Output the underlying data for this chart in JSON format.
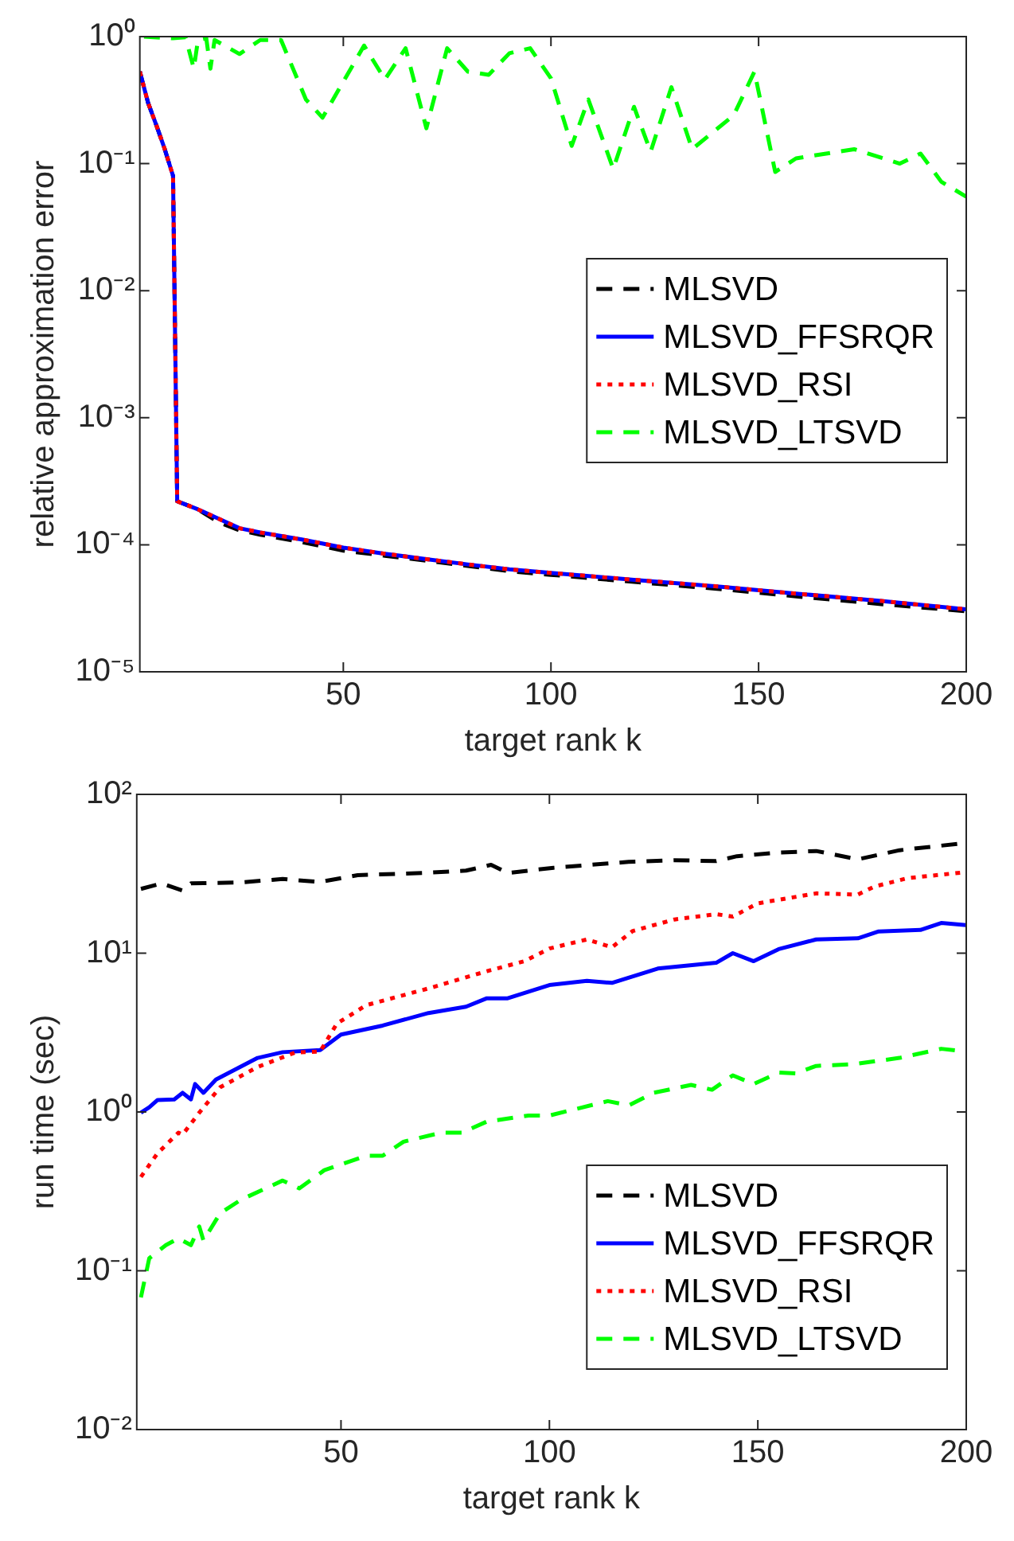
{
  "chart_data": [
    {
      "type": "line",
      "xlabel": "target rank k",
      "ylabel": "relative approximation error",
      "log": "y",
      "xlim": [
        1,
        200
      ],
      "xticks": [
        50,
        100,
        150,
        200
      ],
      "ylim": [
        1e-05,
        1
      ],
      "yticks": [
        {
          "value": 1e-05,
          "label": "10⁻⁵"
        },
        {
          "value": 0.0001,
          "label": "10⁻⁴"
        },
        {
          "value": 0.001,
          "label": "10⁻³"
        },
        {
          "value": 0.01,
          "label": "10⁻²"
        },
        {
          "value": 0.1,
          "label": "10⁻¹"
        },
        {
          "value": 1,
          "label": "10⁰"
        }
      ],
      "grid": false,
      "legend": "right",
      "series": [
        {
          "name": "MLSVD",
          "color": "#000000",
          "line_style": "dashed",
          "x": [
            1,
            3,
            5,
            7,
            9,
            10,
            15,
            20,
            25,
            30,
            40,
            50,
            60,
            70,
            80,
            90,
            100,
            120,
            140,
            160,
            180,
            200
          ],
          "values": [
            0.53,
            0.3,
            0.2,
            0.13,
            0.08,
            0.00022,
            0.00019,
            0.00015,
            0.00013,
            0.00012,
            0.000105,
            9e-05,
            8.2e-05,
            7.5e-05,
            6.8e-05,
            6.2e-05,
            5.8e-05,
            5.1e-05,
            4.5e-05,
            3.9e-05,
            3.4e-05,
            3e-05
          ]
        },
        {
          "name": "MLSVD_FFSRQR",
          "color": "#0000ff",
          "line_style": "solid",
          "x": [
            1,
            3,
            5,
            7,
            9,
            10,
            15,
            20,
            25,
            30,
            40,
            50,
            60,
            70,
            80,
            90,
            100,
            120,
            140,
            160,
            180,
            200
          ],
          "values": [
            0.53,
            0.3,
            0.2,
            0.13,
            0.08,
            0.00022,
            0.00019,
            0.00016,
            0.000135,
            0.000125,
            0.00011,
            9.5e-05,
            8.5e-05,
            7.7e-05,
            7e-05,
            6.4e-05,
            6e-05,
            5.3e-05,
            4.7e-05,
            4.1e-05,
            3.6e-05,
            3.1e-05
          ]
        },
        {
          "name": "MLSVD_RSI",
          "color": "#ff0000",
          "line_style": "dotted",
          "x": [
            1,
            3,
            5,
            7,
            9,
            10,
            15,
            20,
            25,
            30,
            40,
            50,
            60,
            70,
            80,
            90,
            100,
            120,
            140,
            160,
            180,
            200
          ],
          "values": [
            0.53,
            0.3,
            0.2,
            0.13,
            0.08,
            0.00022,
            0.00019,
            0.00016,
            0.000135,
            0.000125,
            0.00011,
            9.5e-05,
            8.5e-05,
            7.7e-05,
            7e-05,
            6.4e-05,
            6e-05,
            5.3e-05,
            4.7e-05,
            4.1e-05,
            3.6e-05,
            3.1e-05
          ]
        },
        {
          "name": "MLSVD_LTSVD",
          "color": "#00ff00",
          "line_style": "dashed",
          "x": [
            2,
            9,
            12,
            14,
            15,
            17,
            18,
            19,
            25,
            30,
            35,
            41,
            45,
            55,
            60,
            65,
            70,
            75,
            80,
            85,
            90,
            95,
            100,
            105,
            109,
            115,
            120,
            124,
            129,
            134,
            144,
            149,
            154,
            159,
            173,
            184,
            189,
            194,
            200
          ],
          "values": [
            1.0,
            0.97,
            0.99,
            0.56,
            0.94,
            0.97,
            0.56,
            0.94,
            0.73,
            0.94,
            0.94,
            0.32,
            0.23,
            0.85,
            0.46,
            0.81,
            0.19,
            0.81,
            0.53,
            0.5,
            0.74,
            0.81,
            0.47,
            0.138,
            0.32,
            0.091,
            0.28,
            0.124,
            0.4,
            0.13,
            0.24,
            0.53,
            0.086,
            0.11,
            0.13,
            0.1,
            0.12,
            0.072,
            0.055
          ]
        }
      ]
    },
    {
      "type": "line",
      "xlabel": "target rank k",
      "ylabel": "run time (sec)",
      "log": "y",
      "xlim": [
        1,
        200
      ],
      "xticks": [
        50,
        100,
        150,
        200
      ],
      "ylim": [
        0.01,
        100
      ],
      "yticks": [
        {
          "value": 0.01,
          "label": "10⁻²"
        },
        {
          "value": 0.1,
          "label": "10⁻¹"
        },
        {
          "value": 1,
          "label": "10⁰"
        },
        {
          "value": 10,
          "label": "10¹"
        },
        {
          "value": 100,
          "label": "10²"
        }
      ],
      "grid": false,
      "legend": "bottom right",
      "series": [
        {
          "name": "MLSVD",
          "color": "#000000",
          "line_style": "dashed",
          "x": [
            2,
            7,
            12,
            14,
            26,
            36,
            45,
            54,
            70,
            80,
            86,
            90,
            101,
            119,
            130,
            140,
            145,
            155,
            164,
            174,
            184,
            200
          ],
          "values": [
            25.4,
            27.5,
            24.8,
            27.5,
            27.9,
            29.3,
            28.1,
            31,
            32,
            33.1,
            36,
            32,
            34.5,
            37.6,
            38.5,
            38,
            40.8,
            43,
            44,
            39,
            44.5,
            49.5
          ]
        },
        {
          "name": "MLSVD_FFSRQR",
          "color": "#0000ff",
          "line_style": "solid",
          "x": [
            2,
            4,
            6,
            10,
            12,
            14,
            15,
            17,
            20,
            30,
            36,
            45,
            50,
            60,
            71,
            80,
            85,
            90,
            100,
            109,
            115,
            126,
            140,
            144,
            149,
            155,
            164,
            174,
            179,
            189,
            194,
            200
          ],
          "values": [
            0.99,
            1.07,
            1.19,
            1.2,
            1.32,
            1.2,
            1.5,
            1.32,
            1.6,
            2.19,
            2.38,
            2.45,
            3.07,
            3.5,
            4.2,
            4.6,
            5.2,
            5.2,
            6.3,
            6.7,
            6.5,
            8.0,
            8.7,
            10,
            8.9,
            10.6,
            12.2,
            12.4,
            13.7,
            14,
            15.5,
            15
          ]
        },
        {
          "name": "MLSVD_RSI",
          "color": "#ff0000",
          "line_style": "dotted",
          "x": [
            2,
            6,
            11,
            12,
            16,
            21,
            30,
            39,
            45,
            49,
            56,
            71,
            85,
            94,
            100,
            109,
            115,
            120,
            130,
            140,
            144,
            150,
            164,
            174,
            178,
            186,
            200
          ],
          "values": [
            0.39,
            0.55,
            0.74,
            0.72,
            0.99,
            1.43,
            1.92,
            2.37,
            2.4,
            3.6,
            4.7,
            6.0,
            7.7,
            8.9,
            10.7,
            12.2,
            10.9,
            13.8,
            16.3,
            17.6,
            17,
            20.6,
            23.8,
            23.4,
            26.3,
            29.7,
            32.4
          ]
        },
        {
          "name": "MLSVD_LTSVD",
          "color": "#00ff00",
          "line_style": "dashed",
          "x": [
            2,
            4,
            8,
            11,
            14,
            16,
            17,
            21,
            26,
            36,
            40,
            46,
            56,
            60,
            65,
            74,
            79,
            85,
            95,
            100,
            114,
            119,
            125,
            134,
            139,
            144,
            149,
            155,
            159,
            164,
            173,
            184,
            194,
            200
          ],
          "values": [
            0.068,
            0.12,
            0.145,
            0.16,
            0.145,
            0.19,
            0.155,
            0.23,
            0.28,
            0.37,
            0.33,
            0.43,
            0.53,
            0.53,
            0.65,
            0.74,
            0.74,
            0.87,
            0.95,
            0.95,
            1.17,
            1.1,
            1.32,
            1.48,
            1.38,
            1.7,
            1.5,
            1.77,
            1.75,
            1.95,
            2.0,
            2.19,
            2.5,
            2.4
          ]
        }
      ]
    }
  ]
}
